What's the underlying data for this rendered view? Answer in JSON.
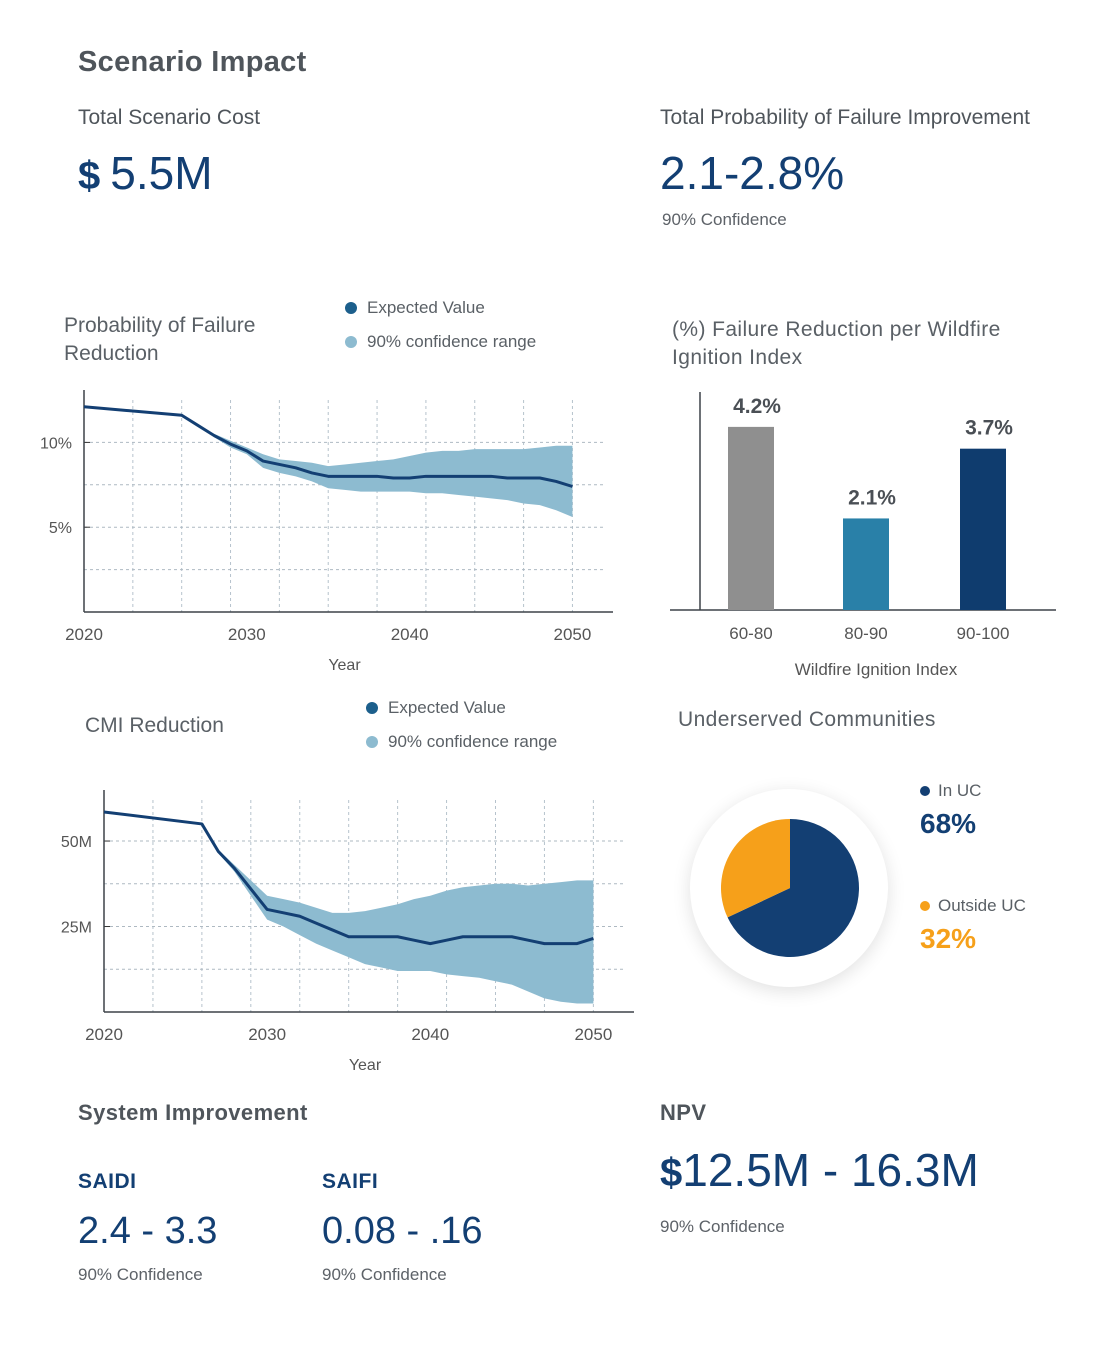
{
  "colors": {
    "navy": "#133f73",
    "light_blue": "#8dbbd0",
    "grey_bar": "#8f8f8f",
    "teal_bar": "#2980a8",
    "dark_bar": "#0f3c6e",
    "orange": "#f6a01a"
  },
  "header": {
    "title": "Scenario Impact"
  },
  "cost": {
    "label": "Total Scenario Cost",
    "currency": "$",
    "value": "5.5M"
  },
  "pof_total": {
    "label": "Total Probability of Failure Improvement",
    "value": "2.1-2.8%",
    "confidence": "90% Confidence"
  },
  "legend": {
    "expected": "Expected Value",
    "range": "90% confidence range"
  },
  "underserved": {
    "title": "Underserved Communities",
    "in_label": "In UC",
    "in_value": "68%",
    "out_label": "Outside UC",
    "out_value": "32%"
  },
  "system": {
    "title": "System Improvement",
    "saidi_label": "SAIDI",
    "saidi_value": "2.4 - 3.3",
    "saidi_conf": "90% Confidence",
    "saifi_label": "SAIFI",
    "saifi_value": "0.08 - .16",
    "saifi_conf": "90% Confidence"
  },
  "npv": {
    "label": "NPV",
    "currency": "$",
    "value": "12.5M - 16.3M",
    "confidence": "90% Confidence"
  },
  "chart_data": [
    {
      "id": "pof",
      "type": "area",
      "title": "Probability of Failure Reduction",
      "xlabel": "Year",
      "ylabel": "",
      "xlim": [
        2020,
        2052
      ],
      "ylim": [
        0,
        12.5
      ],
      "x_ticks": [
        2020,
        2030,
        2040,
        2050
      ],
      "y_ticks": [
        {
          "v": 5,
          "label": "5%"
        },
        {
          "v": 10,
          "label": "10%"
        }
      ],
      "x": [
        2020,
        2026,
        2027,
        2028,
        2029,
        2030,
        2031,
        2032,
        2033,
        2034,
        2035,
        2036,
        2037,
        2038,
        2039,
        2040,
        2041,
        2042,
        2043,
        2044,
        2045,
        2046,
        2047,
        2048,
        2049,
        2050
      ],
      "series": [
        {
          "name": "Expected Value",
          "values": [
            12.1,
            11.6,
            11.0,
            10.4,
            9.9,
            9.5,
            8.9,
            8.7,
            8.5,
            8.2,
            8.0,
            8.0,
            8.0,
            8.0,
            7.9,
            7.9,
            8.0,
            8.0,
            8.0,
            8.0,
            8.0,
            7.9,
            7.9,
            7.9,
            7.7,
            7.4
          ]
        },
        {
          "name": "90% confidence range",
          "upper": [
            12.1,
            11.6,
            11.0,
            10.5,
            10.1,
            9.7,
            9.3,
            9.0,
            8.9,
            8.8,
            8.6,
            8.7,
            8.8,
            8.9,
            9.0,
            9.2,
            9.4,
            9.5,
            9.5,
            9.6,
            9.6,
            9.6,
            9.6,
            9.7,
            9.8,
            9.8
          ],
          "lower": [
            12.1,
            11.6,
            11.0,
            10.3,
            9.7,
            9.3,
            8.5,
            8.2,
            8.0,
            7.7,
            7.3,
            7.2,
            7.1,
            7.1,
            7.1,
            7.1,
            7.0,
            7.0,
            6.9,
            6.8,
            6.7,
            6.6,
            6.4,
            6.3,
            6.0,
            5.6
          ]
        }
      ]
    },
    {
      "id": "wii",
      "type": "bar",
      "title": "(%) Failure Reduction per Wildfire Ignition Index",
      "xlabel": "Wildfire Ignition Index",
      "ylabel": "",
      "ylim": [
        0,
        5
      ],
      "categories": [
        "60-80",
        "80-90",
        "90-100"
      ],
      "values": [
        4.2,
        2.1,
        3.7
      ],
      "data_labels": [
        "4.2%",
        "2.1%",
        "3.7%"
      ]
    },
    {
      "id": "cmi",
      "type": "area",
      "title": "CMI Reduction",
      "xlabel": "Year",
      "ylabel": "",
      "xlim": [
        2020,
        2052
      ],
      "ylim": [
        0,
        62
      ],
      "x_ticks": [
        2020,
        2030,
        2040,
        2050
      ],
      "y_ticks": [
        {
          "v": 25,
          "label": "25M"
        },
        {
          "v": 50,
          "label": "50M"
        }
      ],
      "x": [
        2020,
        2026,
        2027,
        2028,
        2029,
        2030,
        2031,
        2032,
        2033,
        2034,
        2035,
        2036,
        2037,
        2038,
        2039,
        2040,
        2041,
        2042,
        2043,
        2044,
        2045,
        2046,
        2047,
        2048,
        2049,
        2050
      ],
      "series": [
        {
          "name": "Expected Value",
          "values": [
            58.5,
            55.0,
            47.0,
            42.0,
            36.0,
            30.0,
            29.0,
            28.0,
            26.0,
            24.0,
            22.0,
            22.0,
            22.0,
            22.0,
            21.0,
            20.0,
            21.0,
            22.0,
            22.0,
            22.0,
            22.0,
            21.0,
            20.0,
            20.0,
            20.0,
            21.5
          ]
        },
        {
          "name": "90% confidence range",
          "upper": [
            58.5,
            55.0,
            47.5,
            43.0,
            38.5,
            34.0,
            33.0,
            32.0,
            30.5,
            29.0,
            29.0,
            29.5,
            30.5,
            31.5,
            33.0,
            34.0,
            35.5,
            36.5,
            37.0,
            37.5,
            37.5,
            37.0,
            37.5,
            38.0,
            38.5,
            38.5
          ],
          "lower": [
            58.5,
            55.0,
            46.5,
            41.0,
            34.0,
            27.0,
            25.0,
            22.5,
            20.0,
            18.0,
            16.0,
            14.0,
            13.0,
            12.0,
            12.0,
            12.0,
            11.0,
            10.5,
            10.0,
            9.0,
            8.0,
            6.0,
            4.0,
            3.0,
            2.5,
            2.5
          ]
        }
      ]
    },
    {
      "id": "uc",
      "type": "pie",
      "title": "Underserved Communities",
      "categories": [
        "In UC",
        "Outside UC"
      ],
      "values": [
        68,
        32
      ],
      "legend": "right"
    }
  ]
}
